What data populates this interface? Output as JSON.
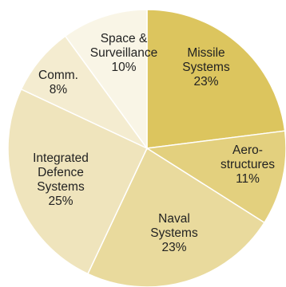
{
  "chart_data": {
    "type": "pie",
    "title": "",
    "start_angle_deg": 0,
    "direction": "clockwise",
    "slices": [
      {
        "label_lines": [
          "Missile",
          "Systems",
          "23%"
        ],
        "value": 23,
        "color": "#dcc55e"
      },
      {
        "label_lines": [
          "Aero-",
          "structures",
          "11%"
        ],
        "value": 11,
        "color": "#e3d07e"
      },
      {
        "label_lines": [
          "Naval",
          "Systems",
          "23%"
        ],
        "value": 23,
        "color": "#e9da9d"
      },
      {
        "label_lines": [
          "Integrated",
          "Defence",
          "Systems",
          "25%"
        ],
        "value": 25,
        "color": "#efe4bc"
      },
      {
        "label_lines": [
          "Comm.",
          "8%"
        ],
        "value": 8,
        "color": "#f4ecd0"
      },
      {
        "label_lines": [
          "Space &",
          "Surveillance",
          "10%"
        ],
        "value": 10,
        "color": "#f9f5e6"
      }
    ]
  }
}
